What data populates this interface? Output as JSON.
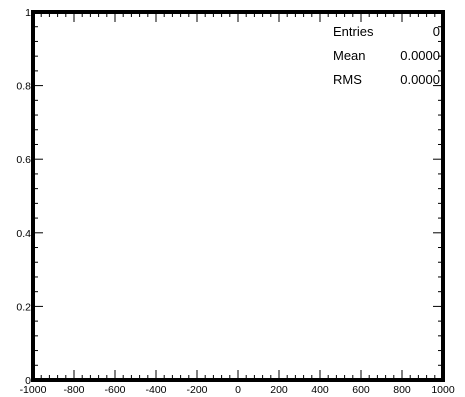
{
  "chart_data": {
    "type": "bar",
    "title": "",
    "xlabel": "",
    "ylabel": "",
    "xlim": [
      -1000,
      1000
    ],
    "ylim": [
      0,
      1
    ],
    "x_ticks": [
      -1000,
      -800,
      -600,
      -400,
      -200,
      0,
      200,
      400,
      600,
      800,
      1000
    ],
    "x_tick_labels": [
      "-1000",
      "-800",
      "-600",
      "-400",
      "-200",
      "0",
      "200",
      "400",
      "600",
      "800",
      "1000"
    ],
    "y_ticks": [
      0,
      0.2,
      0.4,
      0.6,
      0.8,
      1
    ],
    "y_tick_labels": [
      "0",
      "0.2",
      "0.4",
      "0.6",
      "0.8",
      "1"
    ],
    "values": [],
    "grid": false
  },
  "stats": {
    "entries_label": "Entries",
    "entries_value": "0",
    "mean_label": "Mean",
    "mean_value": "0.0000",
    "rms_label": "RMS",
    "rms_value": "0.0000"
  }
}
